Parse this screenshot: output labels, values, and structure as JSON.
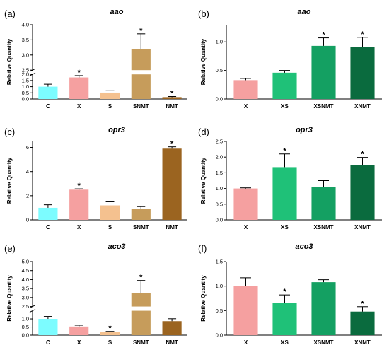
{
  "chart_data": [
    {
      "id": "a",
      "panel_label": "(a)",
      "type": "bar",
      "title": "aao",
      "xlabel": "",
      "ylabel": "Relative Quantity",
      "ylim": [
        0,
        4.0
      ],
      "broken_axis": {
        "lower": [
          0,
          2.0
        ],
        "upper": [
          2.5,
          4.0
        ]
      },
      "yticks": [
        "0.0",
        "0.5",
        "1.0",
        "1.5",
        "2.0",
        "2.5",
        "3.0",
        "3.5",
        "4.0"
      ],
      "categories": [
        "C",
        "X",
        "S",
        "SNMT",
        "NMT"
      ],
      "values": [
        1.0,
        1.75,
        0.52,
        3.2,
        0.15
      ],
      "errors": [
        0.2,
        0.15,
        0.15,
        0.5,
        0.05
      ],
      "significant": [
        false,
        true,
        false,
        true,
        true
      ],
      "colors": [
        "#7cfcff",
        "#f5a0a0",
        "#f4c18f",
        "#c69c5b",
        "#9b6420"
      ]
    },
    {
      "id": "b",
      "panel_label": "(b)",
      "type": "bar",
      "title": "aao",
      "xlabel": "",
      "ylabel": "Relative Quantity",
      "ylim": [
        0,
        1.3
      ],
      "yticks": [
        "0.0",
        "0.5",
        "1.0"
      ],
      "categories": [
        "X",
        "XS",
        "XSNMT",
        "XNMT"
      ],
      "values": [
        0.33,
        0.46,
        0.93,
        0.91
      ],
      "errors": [
        0.03,
        0.04,
        0.14,
        0.17
      ],
      "significant": [
        false,
        false,
        true,
        true
      ],
      "colors": [
        "#f5a0a0",
        "#1fc178",
        "#14a062",
        "#0a6b3e"
      ]
    },
    {
      "id": "c",
      "panel_label": "(c)",
      "type": "bar",
      "title": "opr3",
      "xlabel": "",
      "ylabel": "Relative Quantity",
      "ylim": [
        0,
        6.5
      ],
      "yticks": [
        "0",
        "2",
        "4",
        "6"
      ],
      "categories": [
        "C",
        "X",
        "S",
        "SNMT",
        "NMT"
      ],
      "values": [
        1.0,
        2.5,
        1.2,
        0.9,
        5.9
      ],
      "errors": [
        0.25,
        0.07,
        0.35,
        0.2,
        0.15
      ],
      "significant": [
        false,
        true,
        false,
        false,
        true
      ],
      "colors": [
        "#7cfcff",
        "#f5a0a0",
        "#f4c18f",
        "#c69c5b",
        "#9b6420"
      ]
    },
    {
      "id": "d",
      "panel_label": "(d)",
      "type": "bar",
      "title": "opr3",
      "xlabel": "",
      "ylabel": "Relative Quantity",
      "ylim": [
        0,
        2.5
      ],
      "yticks": [
        "0.0",
        "0.5",
        "1.0",
        "1.5",
        "2.0",
        "2.5"
      ],
      "categories": [
        "X",
        "XS",
        "XSNMT",
        "XNMT"
      ],
      "values": [
        1.0,
        1.68,
        1.05,
        1.74
      ],
      "errors": [
        0.02,
        0.42,
        0.2,
        0.25
      ],
      "significant": [
        false,
        true,
        false,
        true
      ],
      "colors": [
        "#f5a0a0",
        "#1fc178",
        "#14a062",
        "#0a6b3e"
      ]
    },
    {
      "id": "e",
      "panel_label": "(e)",
      "type": "bar",
      "title": "aco3",
      "xlabel": "",
      "ylabel": "Relative Quantity",
      "ylim": [
        0,
        5.0
      ],
      "broken_axis": {
        "lower": [
          0,
          1.5
        ],
        "upper": [
          2.5,
          5.0
        ]
      },
      "yticks": [
        "0.0",
        "0.5",
        "1.0",
        "2.5",
        "3.0",
        "3.5",
        "4.0",
        "4.5",
        "5.0"
      ],
      "categories": [
        "C",
        "X",
        "S",
        "SNMT",
        "NMT"
      ],
      "values": [
        1.0,
        0.53,
        0.18,
        3.25,
        0.86
      ],
      "errors": [
        0.15,
        0.08,
        0.05,
        0.7,
        0.15
      ],
      "significant": [
        false,
        false,
        true,
        true,
        false
      ],
      "colors": [
        "#7cfcff",
        "#f5a0a0",
        "#f4c18f",
        "#c69c5b",
        "#9b6420"
      ]
    },
    {
      "id": "f",
      "panel_label": "(f)",
      "type": "bar",
      "title": "aco3",
      "xlabel": "",
      "ylabel": "Relative Quantity",
      "ylim": [
        0,
        1.5
      ],
      "yticks": [
        "0.0",
        "0.5",
        "1.0",
        "1.5"
      ],
      "categories": [
        "X",
        "XS",
        "XSNMT",
        "XNMT"
      ],
      "values": [
        1.0,
        0.65,
        1.08,
        0.48
      ],
      "errors": [
        0.17,
        0.17,
        0.05,
        0.1
      ],
      "significant": [
        false,
        true,
        false,
        true
      ],
      "colors": [
        "#f5a0a0",
        "#1fc178",
        "#14a062",
        "#0a6b3e"
      ]
    }
  ]
}
